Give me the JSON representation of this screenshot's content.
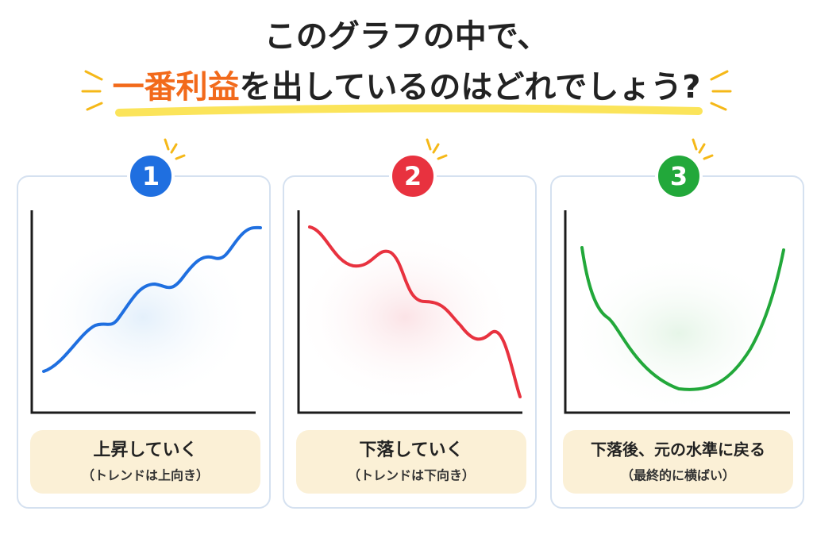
{
  "header": {
    "line1": "このグラフの中で、",
    "highlight": "一番利益",
    "line2": "を出しているのはどれでしょう?"
  },
  "options": [
    {
      "number": "1",
      "label": "上昇していく",
      "sublabel": "（トレンドは上向き）"
    },
    {
      "number": "2",
      "label": "下落していく",
      "sublabel": "（トレンドは下向き）"
    },
    {
      "number": "3",
      "label": "下落後、元の水準に戻る",
      "sublabel": "（最終的に横ばい）"
    }
  ]
}
